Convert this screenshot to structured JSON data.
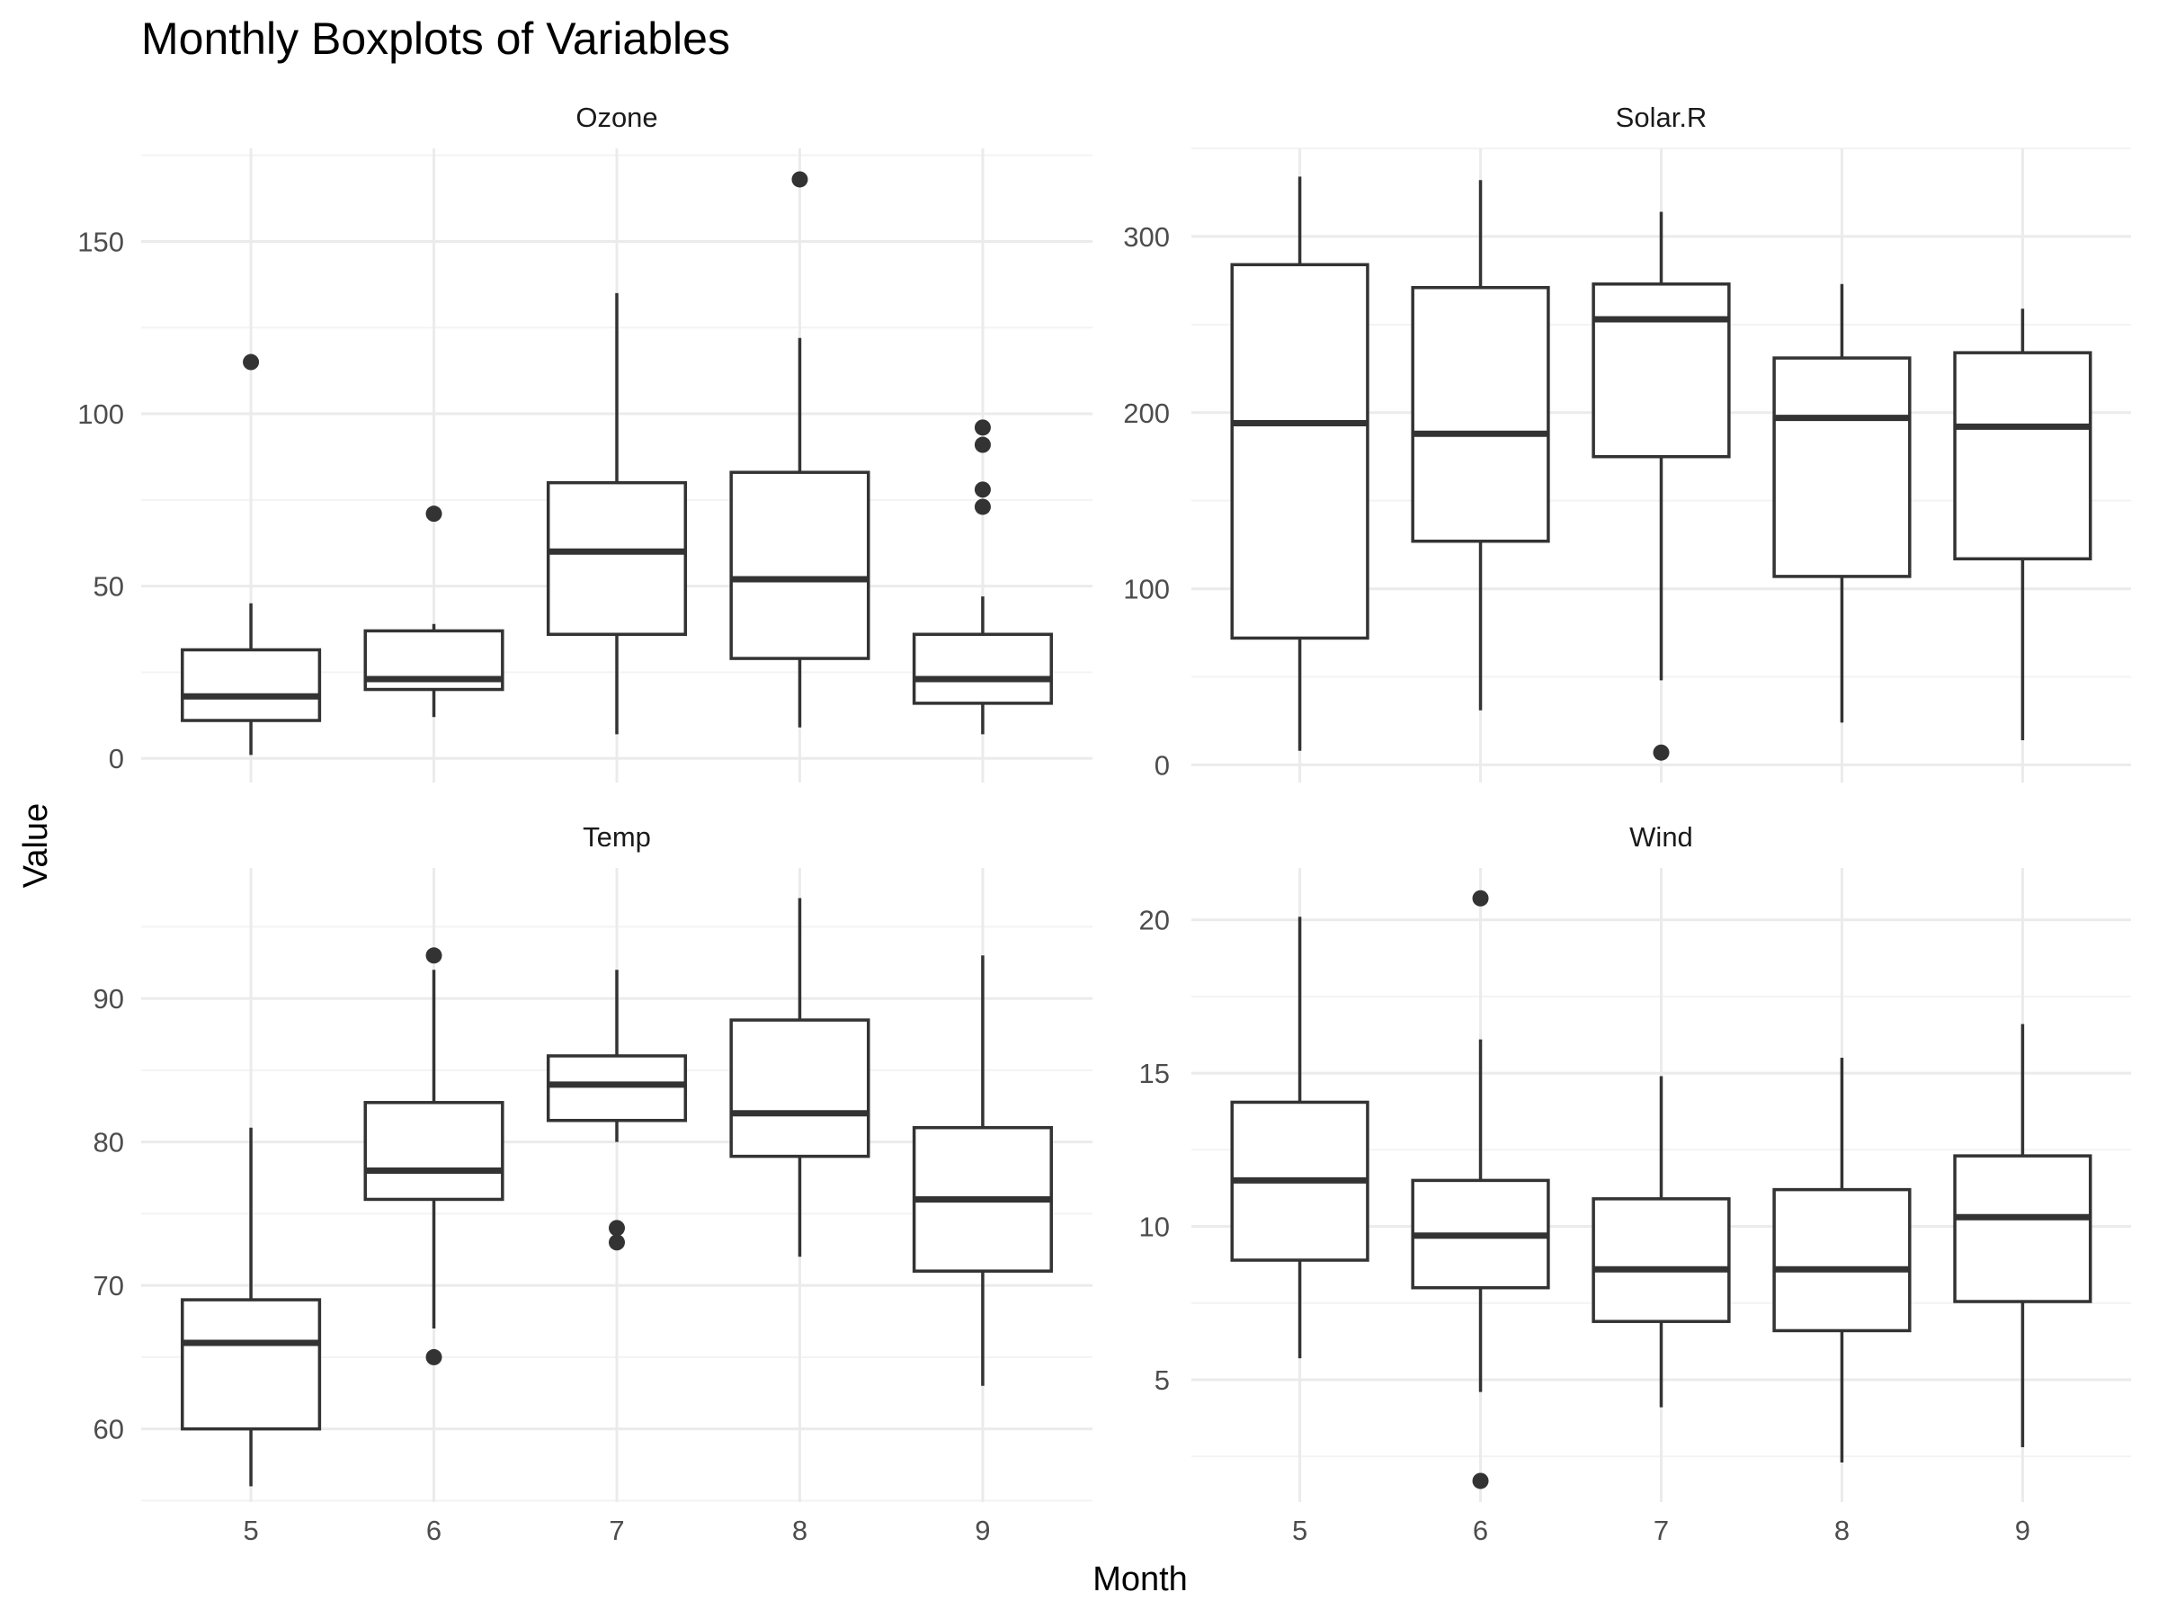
{
  "chart_data": {
    "type": "boxplot",
    "title": "Monthly Boxplots of Variables",
    "xlabel": "Month",
    "ylabel": "Value",
    "categories": [
      "5",
      "6",
      "7",
      "8",
      "9"
    ],
    "grid": true,
    "colors": {
      "box_stroke": "#333333",
      "grid_major": "#ebebeb",
      "grid_minor": "#f3f3f3",
      "outlier": "#333333"
    },
    "panels": [
      {
        "name": "Ozone",
        "ylim": [
          -7,
          177
        ],
        "yticks": [
          0,
          50,
          100,
          150
        ],
        "boxes": [
          {
            "month": "5",
            "min": 1,
            "q1": 11,
            "median": 18,
            "q3": 31.5,
            "max": 45,
            "outliers": [
              115
            ]
          },
          {
            "month": "6",
            "min": 12,
            "q1": 20,
            "median": 23,
            "q3": 37,
            "max": 39,
            "outliers": [
              71
            ]
          },
          {
            "month": "7",
            "min": 7,
            "q1": 36,
            "median": 60,
            "q3": 80,
            "max": 135,
            "outliers": []
          },
          {
            "month": "8",
            "min": 9,
            "q1": 29,
            "median": 52,
            "q3": 83,
            "max": 122,
            "outliers": [
              168
            ]
          },
          {
            "month": "9",
            "min": 7,
            "q1": 16,
            "median": 23,
            "q3": 36,
            "max": 47,
            "outliers": [
              96,
              91,
              78,
              73
            ]
          }
        ]
      },
      {
        "name": "Solar.R",
        "ylim": [
          -10,
          350
        ],
        "yticks": [
          0,
          100,
          200,
          300
        ],
        "boxes": [
          {
            "month": "5",
            "min": 8,
            "q1": 72,
            "median": 194,
            "q3": 284,
            "max": 334,
            "outliers": []
          },
          {
            "month": "6",
            "min": 31,
            "q1": 127,
            "median": 188,
            "q3": 271,
            "max": 332,
            "outliers": []
          },
          {
            "month": "7",
            "min": 48,
            "q1": 175,
            "median": 253,
            "q3": 273,
            "max": 314,
            "outliers": [
              7
            ]
          },
          {
            "month": "8",
            "min": 24,
            "q1": 107,
            "median": 197,
            "q3": 231,
            "max": 273,
            "outliers": []
          },
          {
            "month": "9",
            "min": 14,
            "q1": 117,
            "median": 192,
            "q3": 234,
            "max": 259,
            "outliers": []
          }
        ]
      },
      {
        "name": "Temp",
        "ylim": [
          54.9,
          99.1
        ],
        "yticks": [
          60,
          70,
          80,
          90
        ],
        "boxes": [
          {
            "month": "5",
            "min": 56,
            "q1": 60,
            "median": 66,
            "q3": 69,
            "max": 81,
            "outliers": []
          },
          {
            "month": "6",
            "min": 67,
            "q1": 76,
            "median": 78,
            "q3": 82.75,
            "max": 92,
            "outliers": [
              93,
              65
            ]
          },
          {
            "month": "7",
            "min": 80,
            "q1": 81.5,
            "median": 84,
            "q3": 86,
            "max": 92,
            "outliers": [
              74,
              73
            ]
          },
          {
            "month": "8",
            "min": 72,
            "q1": 79,
            "median": 82,
            "q3": 88.5,
            "max": 97,
            "outliers": []
          },
          {
            "month": "9",
            "min": 63,
            "q1": 71,
            "median": 76,
            "q3": 81,
            "max": 93,
            "outliers": []
          }
        ]
      },
      {
        "name": "Wind",
        "ylim": [
          1.01,
          21.69
        ],
        "yticks": [
          5,
          10,
          15,
          20
        ],
        "boxes": [
          {
            "month": "5",
            "min": 5.7,
            "q1": 8.9,
            "median": 11.5,
            "q3": 14.05,
            "max": 20.1,
            "outliers": []
          },
          {
            "month": "6",
            "min": 4.6,
            "q1": 8.0,
            "median": 9.7,
            "q3": 11.5,
            "max": 16.1,
            "outliers": [
              20.7,
              1.7
            ]
          },
          {
            "month": "7",
            "min": 4.1,
            "q1": 6.9,
            "median": 8.6,
            "q3": 10.9,
            "max": 14.9,
            "outliers": []
          },
          {
            "month": "8",
            "min": 2.3,
            "q1": 6.6,
            "median": 8.6,
            "q3": 11.2,
            "max": 15.5,
            "outliers": []
          },
          {
            "month": "9",
            "min": 2.8,
            "q1": 7.55,
            "median": 10.3,
            "q3": 12.3,
            "max": 16.6,
            "outliers": []
          }
        ]
      }
    ]
  }
}
